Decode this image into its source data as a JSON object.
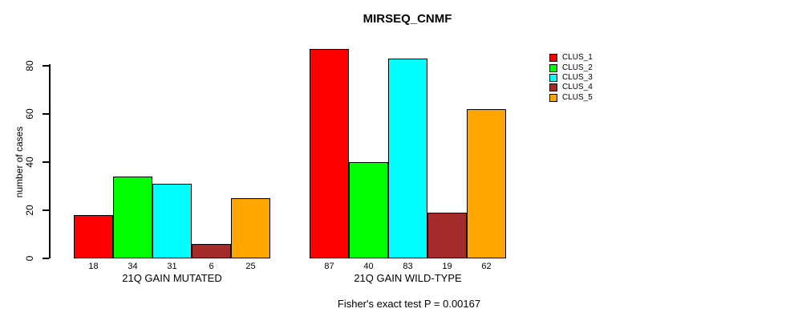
{
  "chart_data": {
    "type": "bar",
    "title": "MIRSEQ_CNMF",
    "ylabel": "number of cases",
    "xlabel": "",
    "yticks": [
      0,
      20,
      40,
      60,
      80
    ],
    "ylim": [
      0,
      88
    ],
    "grid": false,
    "legend_position": "right",
    "bar_value_labels": true,
    "categories": [
      "21Q GAIN MUTATED",
      "21Q GAIN WILD-TYPE"
    ],
    "series": [
      {
        "name": "CLUS_1",
        "color": "#FF0000",
        "values": [
          18,
          87
        ]
      },
      {
        "name": "CLUS_2",
        "color": "#00FF00",
        "values": [
          34,
          40
        ]
      },
      {
        "name": "CLUS_3",
        "color": "#00FFFF",
        "values": [
          31,
          83
        ]
      },
      {
        "name": "CLUS_4",
        "color": "#A52A2A",
        "values": [
          6,
          19
        ]
      },
      {
        "name": "CLUS_5",
        "color": "#FFA500",
        "values": [
          25,
          62
        ]
      }
    ],
    "groups": [
      {
        "label": "21Q GAIN MUTATED",
        "values": [
          18,
          34,
          31,
          6,
          25
        ]
      },
      {
        "label": "21Q GAIN WILD-TYPE",
        "values": [
          87,
          40,
          83,
          19,
          62
        ]
      }
    ],
    "legend": [
      {
        "label": "CLUS_1",
        "color": "#FF0000"
      },
      {
        "label": "CLUS_2",
        "color": "#00FF00"
      },
      {
        "label": "CLUS_3",
        "color": "#00FFFF"
      },
      {
        "label": "CLUS_4",
        "color": "#A52A2A"
      },
      {
        "label": "CLUS_5",
        "color": "#FFA500"
      }
    ],
    "annotation": "Fisher's exact test P = 0.00167",
    "axis_color": "#000000",
    "background_color": "#FFFFFF"
  }
}
